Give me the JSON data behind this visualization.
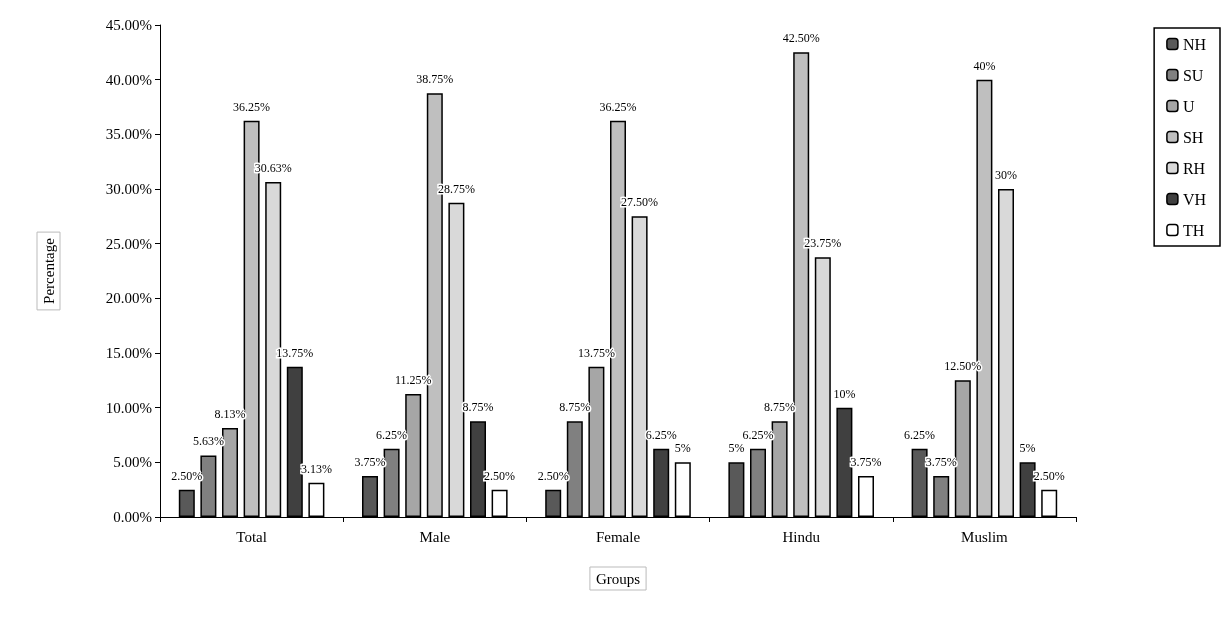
{
  "chart_data": {
    "type": "bar",
    "xlabel": "Groups",
    "ylabel": "Percentage",
    "categories": [
      "Total",
      "Male",
      "Female",
      "Hindu",
      "Muslim"
    ],
    "series": [
      {
        "name": "NH",
        "color": "#595959",
        "values": [
          2.5,
          3.75,
          2.5,
          5,
          6.25
        ],
        "value_labels": [
          "2.50%",
          "3.75%",
          "2.50%",
          "5%",
          "6.25%"
        ]
      },
      {
        "name": "SU",
        "color": "#808080",
        "values": [
          5.63,
          6.25,
          8.75,
          6.25,
          3.75
        ],
        "value_labels": [
          "5.63%",
          "6.25%",
          "8.75%",
          "6.25%",
          "3.75%"
        ]
      },
      {
        "name": "U",
        "color": "#a6a6a6",
        "values": [
          8.13,
          11.25,
          13.75,
          8.75,
          12.5
        ],
        "value_labels": [
          "8.13%",
          "11.25%",
          "13.75%",
          "8.75%",
          "12.50%"
        ]
      },
      {
        "name": "SH",
        "color": "#bfbfbf",
        "values": [
          36.25,
          38.75,
          36.25,
          42.5,
          40
        ],
        "value_labels": [
          "36.25%",
          "38.75%",
          "36.25%",
          "42.50%",
          "40%"
        ]
      },
      {
        "name": "RH",
        "color": "#d9d9d9",
        "values": [
          30.63,
          28.75,
          27.5,
          23.75,
          30
        ],
        "value_labels": [
          "30.63%",
          "28.75%",
          "27.50%",
          "23.75%",
          "30%"
        ]
      },
      {
        "name": "VH",
        "color": "#404040",
        "values": [
          13.75,
          8.75,
          6.25,
          10,
          5
        ],
        "value_labels": [
          "13.75%",
          "8.75%",
          "6.25%",
          "10%",
          "5%"
        ]
      },
      {
        "name": "TH",
        "color": "#ffffff",
        "values": [
          3.13,
          2.5,
          5,
          3.75,
          2.5
        ],
        "value_labels": [
          "3.13%",
          "2.50%",
          "5%",
          "3.75%",
          "2.50%"
        ]
      }
    ],
    "ylim": [
      0,
      45
    ],
    "yticks": [
      {
        "value": 0,
        "label": "0.00%"
      },
      {
        "value": 5,
        "label": "5.00%"
      },
      {
        "value": 10,
        "label": "10.00%"
      },
      {
        "value": 15,
        "label": "15.00%"
      },
      {
        "value": 20,
        "label": "20.00%"
      },
      {
        "value": 25,
        "label": "25.00%"
      },
      {
        "value": 30,
        "label": "30.00%"
      },
      {
        "value": 35,
        "label": "35.00%"
      },
      {
        "value": 40,
        "label": "40.00%"
      },
      {
        "value": 45,
        "label": "45.00%"
      }
    ],
    "grid": false,
    "legend": "right"
  }
}
